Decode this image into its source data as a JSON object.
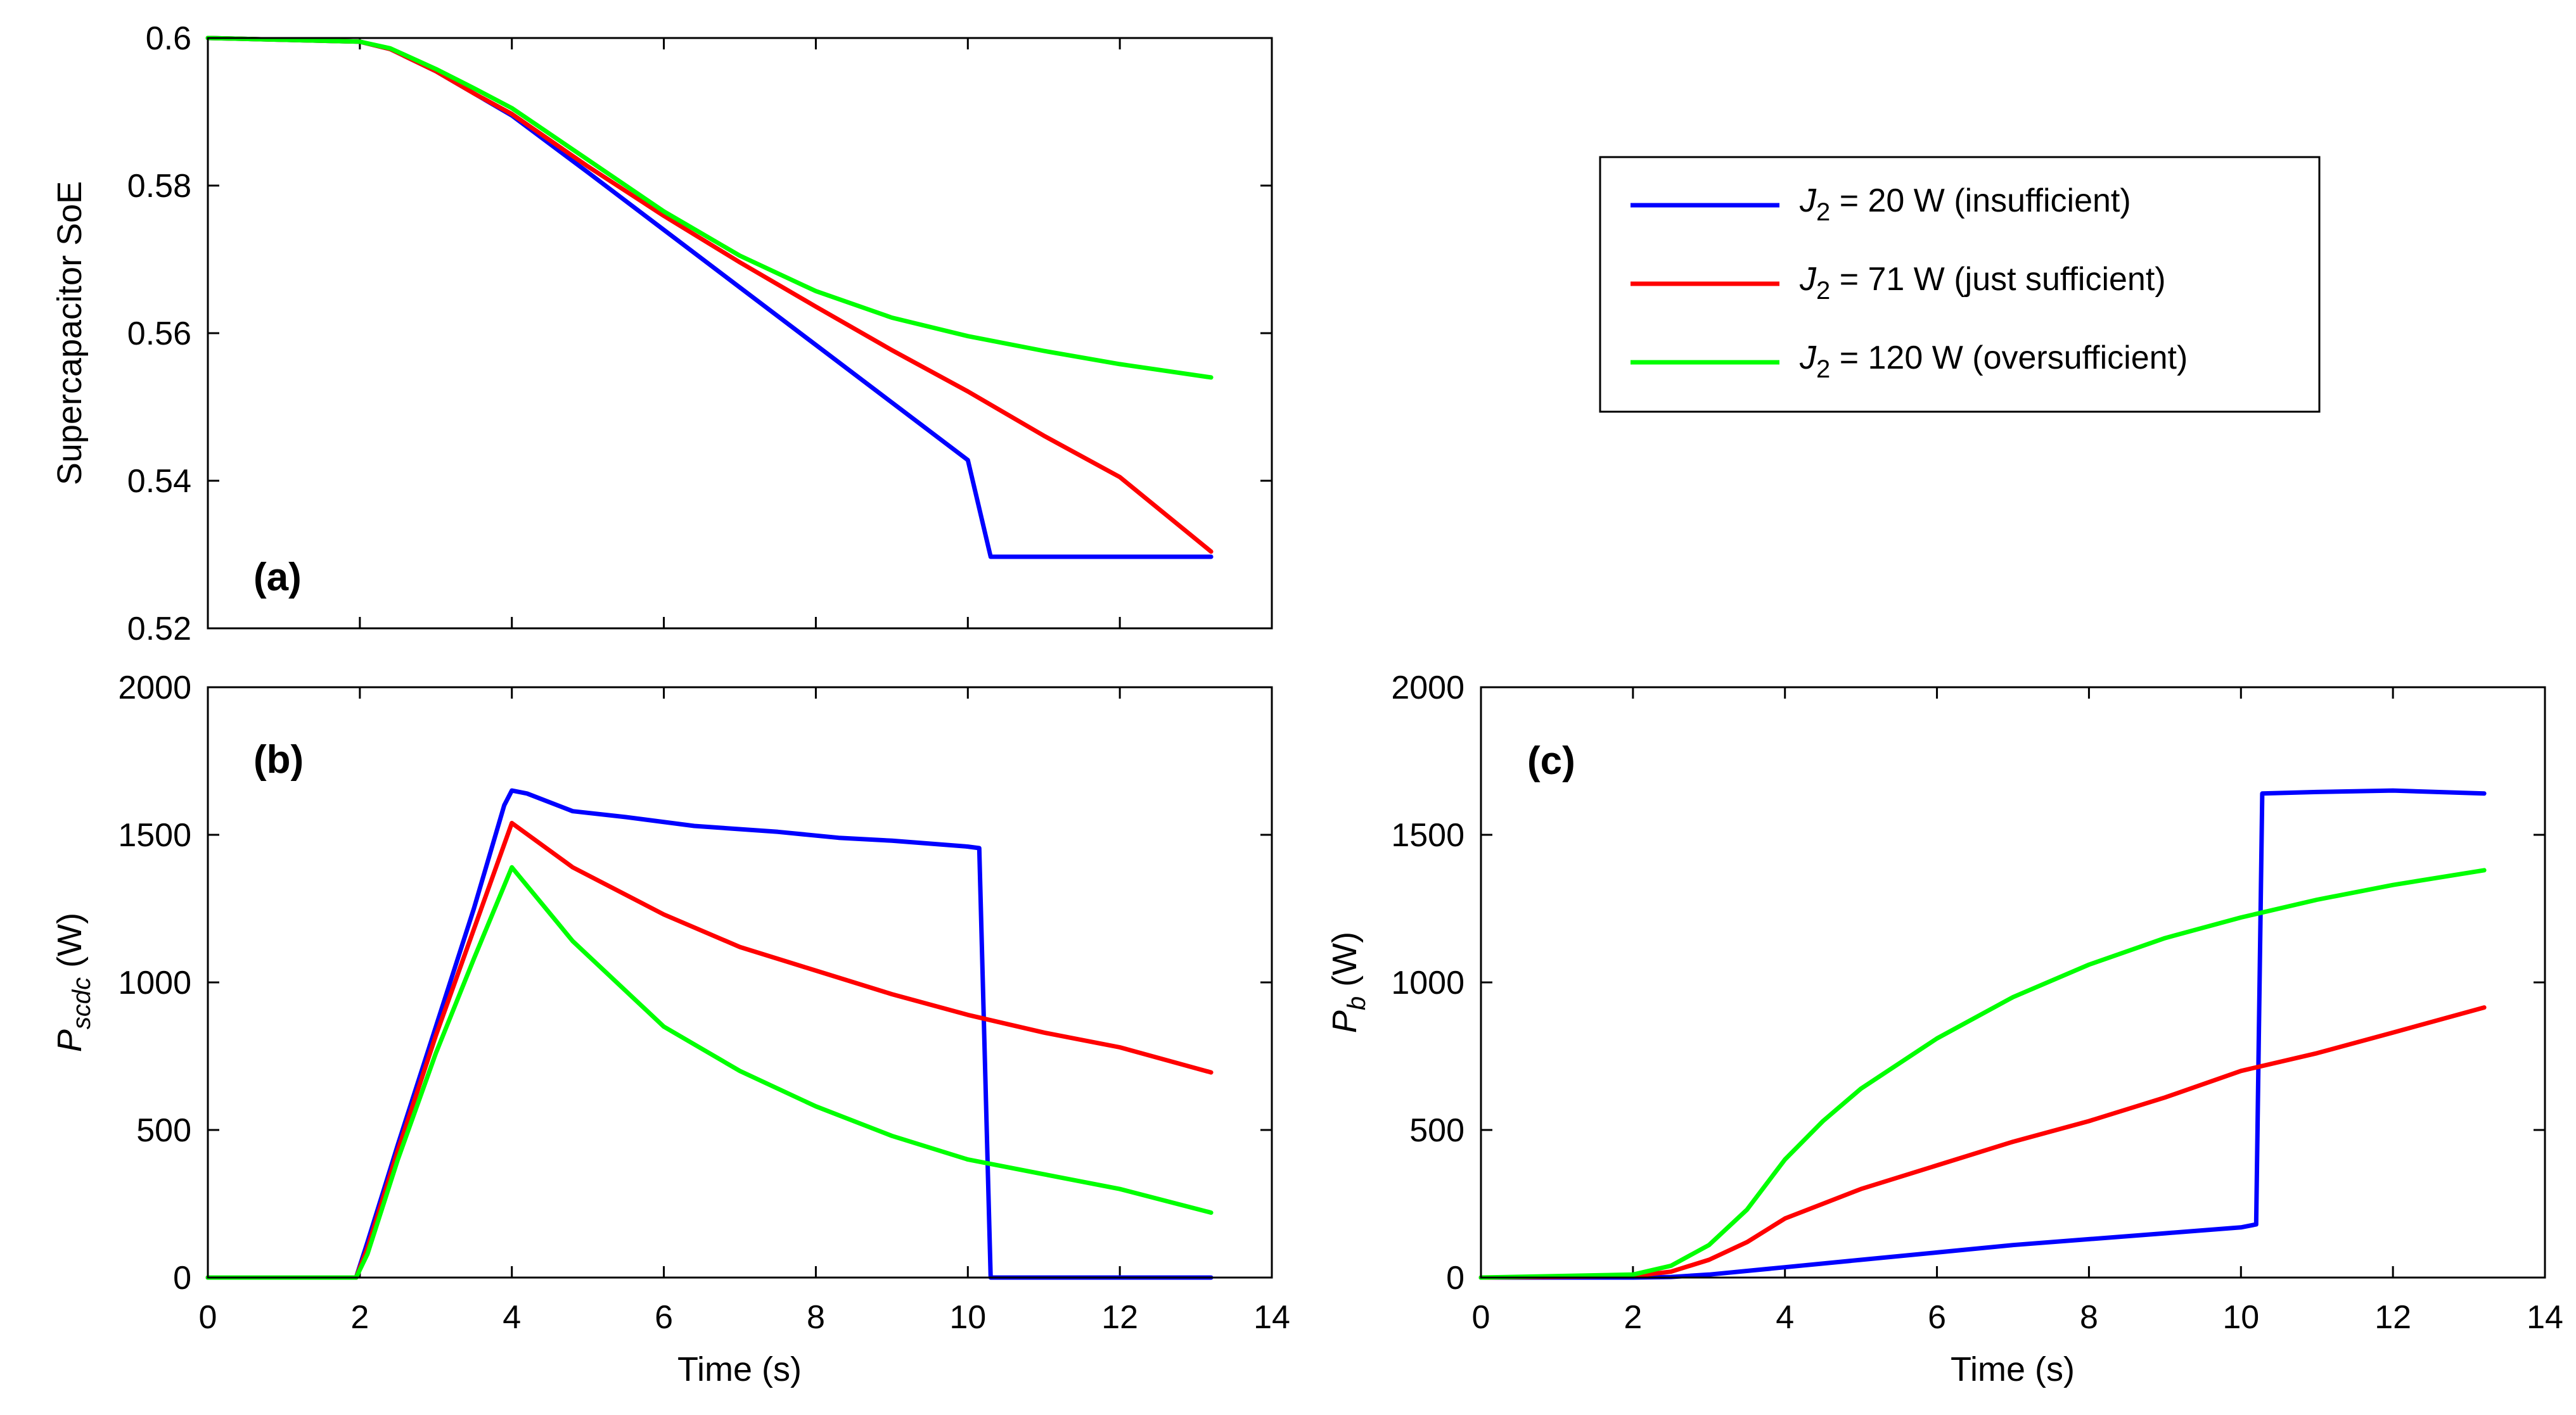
{
  "colors": {
    "blue": "#0000ff",
    "red": "#ff0000",
    "green": "#00ff00"
  },
  "legend": [
    {
      "sym": "J",
      "sub": "2",
      "label": " = 20 W (insufficient)",
      "color": "#0000ff"
    },
    {
      "sym": "J",
      "sub": "2",
      "label": " = 71 W (just sufficient)",
      "color": "#ff0000"
    },
    {
      "sym": "J",
      "sub": "2",
      "label": " = 120 W (oversufficient)",
      "color": "#00ff00"
    }
  ],
  "chart_data": [
    {
      "id": "a",
      "type": "line",
      "panel_label": "(a)",
      "xlabel": "",
      "ylabel": "Supercapacitor SoE",
      "xlim": [
        0,
        14
      ],
      "ylim": [
        0.52,
        0.6
      ],
      "xticks": [
        0,
        2,
        4,
        6,
        8,
        10,
        12,
        14
      ],
      "yticks": [
        0.52,
        0.54,
        0.56,
        0.58,
        0.6
      ],
      "ytick_labels": [
        "0.52",
        "0.54",
        "0.56",
        "0.58",
        "0.6"
      ],
      "show_xtick_labels": false,
      "series": [
        {
          "name": "J2 = 20 W (insufficient)",
          "color": "#0000ff",
          "x": [
            0,
            2,
            2.4,
            3.0,
            3.5,
            4.0,
            5,
            6,
            7,
            8,
            9,
            10,
            10.3,
            11,
            12,
            13.2
          ],
          "y": [
            0.6,
            0.5995,
            0.5985,
            0.5955,
            0.5925,
            0.5895,
            0.5818,
            0.574,
            0.5662,
            0.5584,
            0.5506,
            0.5428,
            0.5297,
            0.5297,
            0.5297,
            0.5297
          ]
        },
        {
          "name": "J2 = 71 W (just sufficient)",
          "color": "#ff0000",
          "x": [
            0,
            2,
            2.4,
            3.0,
            3.5,
            4.0,
            5,
            6,
            7,
            8,
            9,
            10,
            11,
            12,
            13.2
          ],
          "y": [
            0.6,
            0.5995,
            0.5985,
            0.5955,
            0.5925,
            0.5897,
            0.5826,
            0.5759,
            0.5696,
            0.5636,
            0.5577,
            0.5521,
            0.5461,
            0.5405,
            0.5304
          ]
        },
        {
          "name": "J2 = 120 W (oversufficient)",
          "color": "#00ff00",
          "x": [
            0,
            2,
            2.4,
            3.0,
            3.5,
            4.0,
            5,
            6,
            7,
            8,
            9,
            10,
            11,
            12,
            13.2
          ],
          "y": [
            0.6,
            0.5995,
            0.5986,
            0.5958,
            0.5932,
            0.5905,
            0.5835,
            0.5765,
            0.5705,
            0.5657,
            0.5621,
            0.5596,
            0.5576,
            0.5558,
            0.554
          ]
        }
      ]
    },
    {
      "id": "b",
      "type": "line",
      "panel_label": "(b)",
      "xlabel": "Time (s)",
      "ylabel": "P",
      "ylabel_sub": "scdc",
      "ylabel_unit": " (W)",
      "xlim": [
        0,
        14
      ],
      "ylim": [
        0,
        2000
      ],
      "xticks": [
        0,
        2,
        4,
        6,
        8,
        10,
        12,
        14
      ],
      "yticks": [
        0,
        500,
        1000,
        1500,
        2000
      ],
      "ytick_labels": [
        "0",
        "500",
        "1000",
        "1500",
        "2000"
      ],
      "show_xtick_labels": true,
      "series": [
        {
          "name": "J2 = 20 W (insufficient)",
          "color": "#0000ff",
          "x": [
            0,
            1.95,
            2.1,
            2.5,
            3.0,
            3.5,
            3.9,
            4.0,
            4.2,
            4.8,
            5.5,
            6.4,
            7.5,
            8.3,
            9.0,
            10.0,
            10.15,
            10.3,
            11,
            12,
            13.2
          ],
          "y": [
            0,
            0,
            120,
            450,
            850,
            1250,
            1600,
            1650,
            1640,
            1580,
            1560,
            1530,
            1510,
            1490,
            1480,
            1460,
            1455,
            0,
            0,
            0,
            0
          ]
        },
        {
          "name": "J2 = 71 W (just sufficient)",
          "color": "#ff0000",
          "x": [
            0,
            1.95,
            2.1,
            2.5,
            3.0,
            3.5,
            4.0,
            4.8,
            6.0,
            7.0,
            8.0,
            9.0,
            10.0,
            11.0,
            12.0,
            13.2
          ],
          "y": [
            0,
            0,
            100,
            430,
            820,
            1180,
            1540,
            1390,
            1230,
            1120,
            1040,
            960,
            890,
            830,
            780,
            695
          ]
        },
        {
          "name": "J2 = 120 W (oversufficient)",
          "color": "#00ff00",
          "x": [
            0,
            1.95,
            2.1,
            2.5,
            3.0,
            3.5,
            4.0,
            4.8,
            6.0,
            7.0,
            8.0,
            9.0,
            10.0,
            11.0,
            12.0,
            13.2
          ],
          "y": [
            0,
            0,
            80,
            400,
            760,
            1080,
            1390,
            1140,
            850,
            700,
            580,
            480,
            400,
            350,
            300,
            220
          ]
        }
      ]
    },
    {
      "id": "c",
      "type": "line",
      "panel_label": "(c)",
      "xlabel": "Time (s)",
      "ylabel": "P",
      "ylabel_sub": "b",
      "ylabel_unit": " (W)",
      "xlim": [
        0,
        14
      ],
      "ylim": [
        0,
        2000
      ],
      "xticks": [
        0,
        2,
        4,
        6,
        8,
        10,
        12,
        14
      ],
      "yticks": [
        0,
        500,
        1000,
        1500,
        2000
      ],
      "ytick_labels": [
        "0",
        "500",
        "1000",
        "1500",
        "2000"
      ],
      "show_xtick_labels": true,
      "series": [
        {
          "name": "J2 = 20 W (insufficient)",
          "color": "#0000ff",
          "x": [
            0,
            2.0,
            2.5,
            3.0,
            4.0,
            5.0,
            6.0,
            7.0,
            8.0,
            9.0,
            10.0,
            10.2,
            10.28,
            11.0,
            12.0,
            13.2
          ],
          "y": [
            0,
            0,
            2,
            10,
            35,
            60,
            85,
            110,
            130,
            150,
            170,
            180,
            1640,
            1645,
            1650,
            1640
          ]
        },
        {
          "name": "J2 = 71 W (just sufficient)",
          "color": "#ff0000",
          "x": [
            0,
            2.0,
            2.5,
            3.0,
            3.5,
            4.0,
            5.0,
            6.0,
            7.0,
            8.0,
            9.0,
            10.0,
            11.0,
            12.0,
            13.2
          ],
          "y": [
            0,
            5,
            20,
            60,
            120,
            200,
            300,
            380,
            460,
            530,
            610,
            700,
            760,
            830,
            915
          ]
        },
        {
          "name": "J2 = 120 W (oversufficient)",
          "color": "#00ff00",
          "x": [
            0,
            2.0,
            2.5,
            3.0,
            3.5,
            4.0,
            4.5,
            5.0,
            6.0,
            7.0,
            8.0,
            9.0,
            10.0,
            11.0,
            12.0,
            13.2
          ],
          "y": [
            0,
            10,
            40,
            110,
            230,
            400,
            530,
            640,
            810,
            950,
            1060,
            1150,
            1220,
            1280,
            1330,
            1380
          ]
        }
      ]
    }
  ]
}
